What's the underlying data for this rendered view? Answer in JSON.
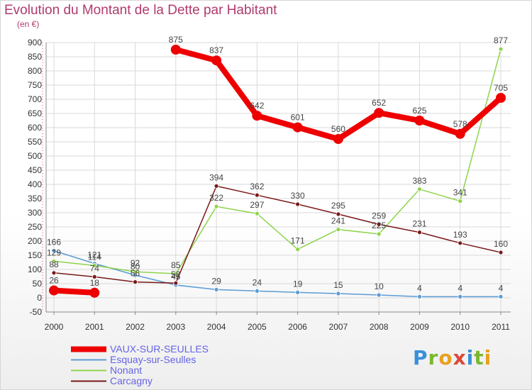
{
  "header": {
    "title": "Evolution du Montant de la Dette par Habitant",
    "subtitle": "(en €)"
  },
  "logo": {
    "text": "Proxiti",
    "colors": [
      "#3a8fd8",
      "#7cb82f",
      "#e8a020",
      "#d84a3a"
    ]
  },
  "chart_data": {
    "type": "line",
    "categories": [
      "2000",
      "2001",
      "2002",
      "2003",
      "2004",
      "2005",
      "2006",
      "2007",
      "2008",
      "2009",
      "2010",
      "2011"
    ],
    "ylim": [
      -50,
      900
    ],
    "yticks": [
      -50,
      0,
      50,
      100,
      150,
      200,
      250,
      300,
      350,
      400,
      450,
      500,
      550,
      600,
      650,
      700,
      750,
      800,
      850,
      900
    ],
    "grid": true,
    "legend_position": "bottom-left",
    "series": [
      {
        "name": "VAUX-SUR-SEULLES",
        "color": "#ee0000",
        "width": 8,
        "marker": 7,
        "values": [
          26,
          18,
          null,
          875,
          837,
          642,
          601,
          560,
          652,
          625,
          578,
          705
        ],
        "labels": [
          "26",
          "18",
          "",
          "875",
          "837",
          "642",
          "601",
          "560",
          "652",
          "625",
          "578",
          "705"
        ]
      },
      {
        "name": "Esquay-sur-Seulles",
        "color": "#5b9bd5",
        "width": 1.5,
        "marker": 3,
        "values": [
          166,
          121,
          80,
          45,
          29,
          24,
          19,
          15,
          10,
          4,
          4,
          4
        ],
        "labels": [
          "166",
          "121",
          "80",
          "45",
          "29",
          "24",
          "19",
          "15",
          "10",
          "4",
          "4",
          "4"
        ]
      },
      {
        "name": "Nonant",
        "color": "#8ed44b",
        "width": 1.5,
        "marker": 3,
        "values": [
          129,
          114,
          92,
          85,
          322,
          297,
          171,
          241,
          225,
          383,
          341,
          877
        ],
        "labels": [
          "129",
          "114",
          "92",
          "85",
          "322",
          "297",
          "171",
          "241",
          "225",
          "383",
          "341",
          "877"
        ]
      },
      {
        "name": "Carcagny",
        "color": "#7a1a1a",
        "width": 1.5,
        "marker": 3,
        "values": [
          88,
          74,
          56,
          52,
          394,
          362,
          330,
          295,
          259,
          231,
          193,
          160
        ],
        "labels": [
          "88",
          "74",
          "56",
          "52",
          "394",
          "362",
          "330",
          "295",
          "259",
          "231",
          "193",
          "160"
        ]
      }
    ]
  }
}
